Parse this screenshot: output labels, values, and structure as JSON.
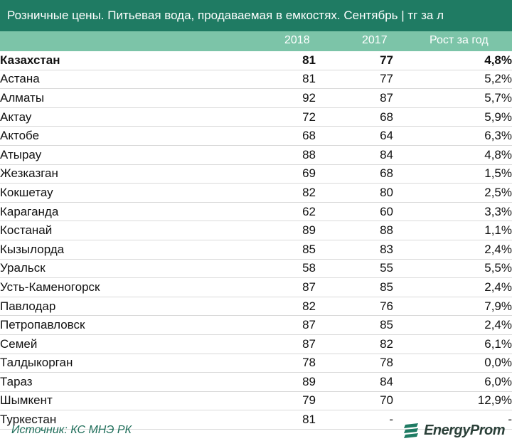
{
  "title": "Розничные цены. Питьевая вода, продаваемая в емкостях. Сентябрь | тг за л",
  "columns": [
    "2018",
    "2017",
    "Рост за год"
  ],
  "rows": [
    {
      "name": "Казахстан",
      "v2018": "81",
      "v2017": "77",
      "growth": "4,8%",
      "bold": true
    },
    {
      "name": "Астана",
      "v2018": "81",
      "v2017": "77",
      "growth": "5,2%"
    },
    {
      "name": "Алматы",
      "v2018": "92",
      "v2017": "87",
      "growth": "5,7%"
    },
    {
      "name": "Актау",
      "v2018": "72",
      "v2017": "68",
      "growth": "5,9%"
    },
    {
      "name": "Актобе",
      "v2018": "68",
      "v2017": "64",
      "growth": "6,3%"
    },
    {
      "name": "Атырау",
      "v2018": "88",
      "v2017": "84",
      "growth": "4,8%"
    },
    {
      "name": "Жезказган",
      "v2018": "69",
      "v2017": "68",
      "growth": "1,5%"
    },
    {
      "name": "Кокшетау",
      "v2018": "82",
      "v2017": "80",
      "growth": "2,5%"
    },
    {
      "name": "Караганда",
      "v2018": "62",
      "v2017": "60",
      "growth": "3,3%"
    },
    {
      "name": "Костанай",
      "v2018": "89",
      "v2017": "88",
      "growth": "1,1%"
    },
    {
      "name": "Кызылорда",
      "v2018": "85",
      "v2017": "83",
      "growth": "2,4%"
    },
    {
      "name": "Уральск",
      "v2018": "58",
      "v2017": "55",
      "growth": "5,5%"
    },
    {
      "name": "Усть-Каменогорск",
      "v2018": "87",
      "v2017": "85",
      "growth": "2,4%"
    },
    {
      "name": "Павлодар",
      "v2018": "82",
      "v2017": "76",
      "growth": "7,9%"
    },
    {
      "name": "Петропавловск",
      "v2018": "87",
      "v2017": "85",
      "growth": "2,4%"
    },
    {
      "name": "Семей",
      "v2018": "87",
      "v2017": "82",
      "growth": "6,1%"
    },
    {
      "name": "Талдыкорган",
      "v2018": "78",
      "v2017": "78",
      "growth": "0,0%"
    },
    {
      "name": "Тараз",
      "v2018": "89",
      "v2017": "84",
      "growth": "6,0%"
    },
    {
      "name": "Шымкент",
      "v2018": "79",
      "v2017": "70",
      "growth": "12,9%"
    },
    {
      "name": "Туркестан",
      "v2018": "81",
      "v2017": "-",
      "growth": "-"
    }
  ],
  "footer": {
    "source": "Источник: КС МНЭ РК",
    "brand": "EnergyProm",
    "brand_icon": "energyprom-logo-icon"
  },
  "colors": {
    "title_bg": "#1f7b63",
    "header_bg": "#7cc4a8",
    "source_text": "#1f6e5a"
  }
}
